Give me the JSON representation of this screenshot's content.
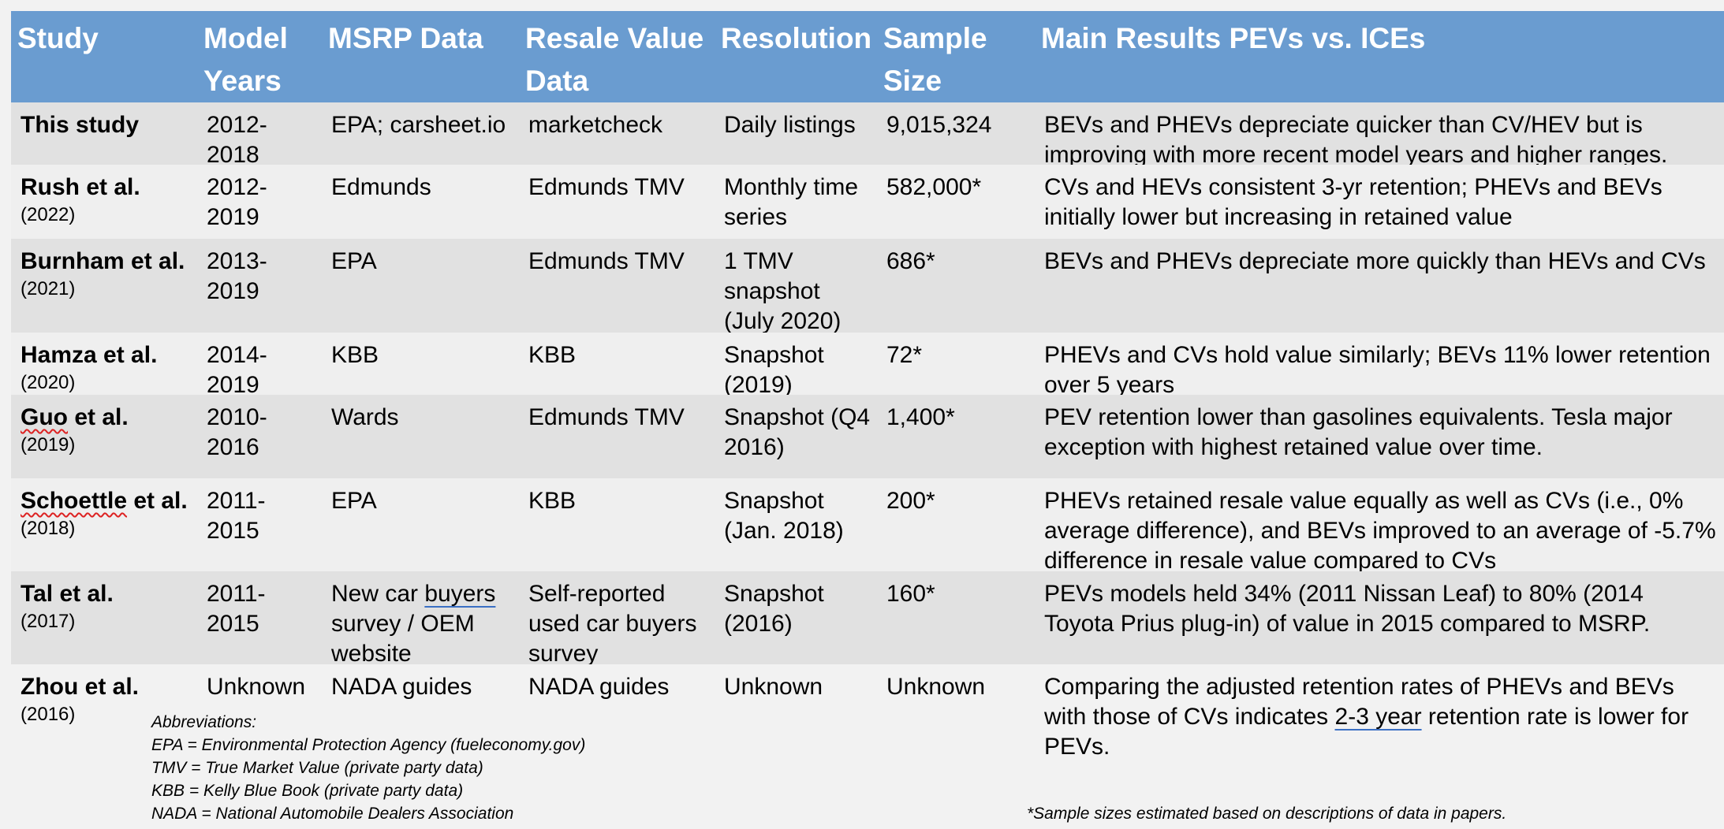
{
  "headers": [
    "Study",
    "Model Years",
    "MSRP Data",
    "Resale Value Data",
    "Resolution",
    "Sample Size",
    "Main Results PEVs vs. ICEs"
  ],
  "rows": [
    {
      "study": "This study",
      "year": "",
      "model_years": "2012-2018",
      "msrp": "EPA; carsheet.io",
      "resale": "marketcheck",
      "resolution": "Daily listings",
      "sample": "9,015,324",
      "result": "BEVs and PHEVs depreciate quicker than CV/HEV but is improving with more recent model years and higher ranges."
    },
    {
      "study": "Rush et al.",
      "year": "(2022)",
      "model_years": "2012-2019",
      "msrp": "Edmunds",
      "resale": "Edmunds TMV",
      "resolution": "Monthly time series",
      "sample": "582,000*",
      "result": "CVs and HEVs consistent 3-yr retention; PHEVs and BEVs initially lower but increasing in retained value"
    },
    {
      "study": "Burnham et al.",
      "year": "(2021)",
      "model_years": "2013-2019",
      "msrp": "EPA",
      "resale": "Edmunds TMV",
      "resolution": "1 TMV snapshot (July 2020)",
      "sample": "686*",
      "result": "BEVs and PHEVs depreciate more quickly than HEVs and CVs"
    },
    {
      "study": "Hamza et al.",
      "year": "(2020)",
      "model_years": "2014-2019",
      "msrp": "KBB",
      "resale": "KBB",
      "resolution": "Snapshot (2019)",
      "sample": "72*",
      "result": "PHEVs and CVs hold value similarly; BEVs 11% lower retention over 5 years"
    },
    {
      "study_pre": "Guo",
      "study_post": " et al.",
      "year": "(2019)",
      "model_years": "2010-2016",
      "msrp": "Wards",
      "resale": "Edmunds TMV",
      "resolution": "Snapshot (Q4 2016)",
      "sample": "1,400*",
      "result": "PEV retention lower than gasolines equivalents. Tesla major exception with highest retained value over time."
    },
    {
      "study_pre": "Schoettle",
      "study_post": " et al.",
      "year": "(2018)",
      "model_years": "2011-2015",
      "msrp": "EPA",
      "resale": "KBB",
      "resolution": "Snapshot (Jan. 2018)",
      "sample": "200*",
      "result": "PHEVs retained resale value equally as well as CVs (i.e., 0% average difference), and BEVs improved to an average of -5.7% difference in resale value compared to CVs"
    },
    {
      "study": "Tal et al.",
      "year": "(2017)",
      "model_years": "2011-2015",
      "msrp_pre": "New car ",
      "msrp_u": "buyers",
      "msrp_post": " survey / OEM website",
      "resale": "Self-reported used car buyers survey",
      "resolution": "Snapshot (2016)",
      "sample": "160*",
      "result": "PEVs models held 34% (2011 Nissan Leaf) to 80% (2014 Toyota Prius plug-in) of value in 2015 compared to MSRP."
    },
    {
      "study": "Zhou et al.",
      "year": "(2016)",
      "model_years": "Unknown",
      "msrp": "NADA guides",
      "resale": "NADA guides",
      "resolution": "Unknown",
      "sample": "Unknown",
      "result_pre": "Comparing the adjusted retention rates of PHEVs and BEVs with those of CVs indicates ",
      "result_u": "2-3 year",
      "result_post": " retention rate is lower for PEVs."
    }
  ],
  "abbreviations": [
    "Abbreviations:",
    "EPA = Environmental Protection Agency (fueleconomy.gov)",
    "TMV = True Market Value (private party data)",
    "KBB = Kelly Blue Book (private party data)",
    "NADA = National Automobile Dealers Association"
  ],
  "footnote": "*Sample sizes estimated based on descriptions of data in papers."
}
